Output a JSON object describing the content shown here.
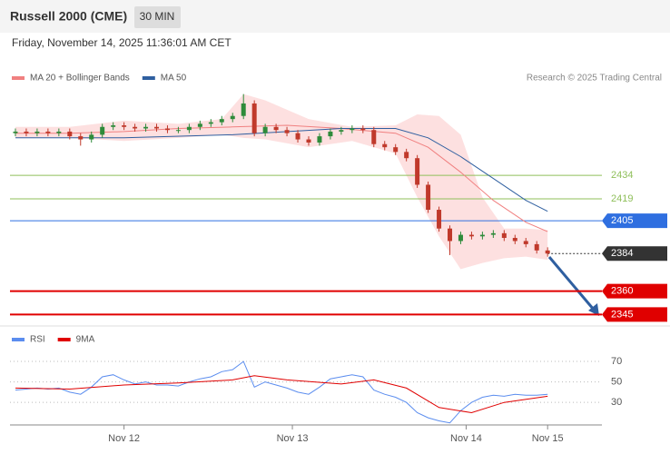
{
  "header": {
    "title": "Russell 2000 (CME)",
    "interval": "30 MIN",
    "timestamp": "Friday, November 14, 2025 11:36:01 AM CET",
    "credit": "Research © 2025 Trading Central"
  },
  "chart_data": [
    {
      "type": "candlestick",
      "xlim": [
        -0.5,
        54
      ],
      "ylim": [
        2340,
        2491
      ],
      "candles": {
        "up_color": "#2e8b3a",
        "down_color": "#c0392b",
        "open": [
          2461,
          2462,
          2461,
          2462,
          2461,
          2462,
          2459,
          2457,
          2460,
          2465,
          2466,
          2465,
          2464,
          2465,
          2464,
          2463,
          2463,
          2465,
          2467,
          2468,
          2470,
          2472,
          2480,
          2461,
          2465,
          2463,
          2461,
          2457,
          2455,
          2459,
          2462,
          2463,
          2464,
          2463,
          2454,
          2452,
          2449,
          2445,
          2428,
          2412,
          2400,
          2392,
          2396,
          2395,
          2396,
          2397,
          2394,
          2392,
          2390,
          2386
        ],
        "high": [
          2464,
          2464,
          2464,
          2464,
          2464,
          2464,
          2461,
          2462,
          2467,
          2468,
          2468,
          2467,
          2467,
          2467,
          2466,
          2465,
          2467,
          2469,
          2470,
          2472,
          2474,
          2486,
          2482,
          2467,
          2467,
          2465,
          2463,
          2459,
          2461,
          2464,
          2465,
          2466,
          2466,
          2465,
          2456,
          2454,
          2451,
          2447,
          2430,
          2414,
          2402,
          2398,
          2398,
          2398,
          2399,
          2399,
          2396,
          2394,
          2392,
          2388
        ],
        "low": [
          2459,
          2459,
          2459,
          2459,
          2459,
          2457,
          2453,
          2455,
          2458,
          2463,
          2463,
          2462,
          2462,
          2462,
          2461,
          2461,
          2461,
          2463,
          2465,
          2466,
          2468,
          2470,
          2459,
          2459,
          2461,
          2459,
          2455,
          2453,
          2453,
          2457,
          2460,
          2461,
          2461,
          2452,
          2450,
          2447,
          2443,
          2426,
          2410,
          2398,
          2383,
          2390,
          2393,
          2393,
          2394,
          2392,
          2390,
          2388,
          2384,
          2382
        ],
        "close": [
          2462,
          2461,
          2462,
          2461,
          2462,
          2459,
          2457,
          2460,
          2465,
          2466,
          2465,
          2464,
          2465,
          2464,
          2463,
          2463,
          2465,
          2467,
          2468,
          2470,
          2472,
          2480,
          2461,
          2465,
          2463,
          2461,
          2457,
          2455,
          2459,
          2462,
          2463,
          2464,
          2463,
          2454,
          2452,
          2449,
          2445,
          2428,
          2412,
          2400,
          2392,
          2396,
          2395,
          2396,
          2397,
          2394,
          2392,
          2390,
          2386,
          2384
        ]
      },
      "series": [
        {
          "name": "MA 20 + Bollinger Bands",
          "color": "#f08080",
          "band_color": "#fde0e0",
          "x": [
            0,
            5,
            10,
            15,
            20,
            25,
            30,
            35,
            38,
            41,
            44,
            47,
            49
          ],
          "values": [
            2461,
            2461,
            2462,
            2464,
            2465,
            2466,
            2464,
            2461,
            2452,
            2436,
            2418,
            2404,
            2398
          ],
          "band": {
            "x": [
              0,
              5,
              10,
              15,
              19,
              21,
              23,
              27,
              31,
              35,
              37,
              39,
              41,
              43,
              45,
              47,
              49
            ],
            "upper": [
              2465,
              2465,
              2469,
              2467,
              2470,
              2486,
              2482,
              2470,
              2465,
              2466,
              2473,
              2472,
              2460,
              2420,
              2400,
              2400,
              2399
            ],
            "lower": [
              2458,
              2458,
              2456,
              2458,
              2460,
              2458,
              2457,
              2452,
              2456,
              2448,
              2420,
              2395,
              2374,
              2378,
              2381,
              2382,
              2380
            ]
          }
        },
        {
          "name": "MA 50",
          "color": "#2f5fa0",
          "x": [
            0,
            10,
            20,
            30,
            35,
            38,
            41,
            44,
            47,
            49
          ],
          "values": [
            2458,
            2458,
            2460,
            2464,
            2464,
            2458,
            2446,
            2432,
            2418,
            2411
          ]
        }
      ],
      "levels": [
        {
          "value": 2434,
          "color": "#8fbf5a",
          "width": 1,
          "label_style": "text"
        },
        {
          "value": 2419,
          "color": "#8fbf5a",
          "width": 1,
          "label_style": "text"
        },
        {
          "value": 2405,
          "color": "#2f6fe0",
          "width": 1,
          "label_style": "tag"
        },
        {
          "value": 2384,
          "color": "#333333",
          "width": 1,
          "label_style": "tag",
          "line": "dotted"
        },
        {
          "value": 2360,
          "color": "#e00000",
          "width": 2,
          "label_style": "tag"
        },
        {
          "value": 2345,
          "color": "#e00000",
          "width": 2,
          "label_style": "tag"
        }
      ]
    },
    {
      "type": "line",
      "xlim": [
        -0.5,
        54
      ],
      "ylim": [
        8,
        86
      ],
      "yticks": [
        30,
        50,
        70
      ],
      "xticks": [
        {
          "value": 10,
          "label": "Nov 12"
        },
        {
          "value": 25.5,
          "label": "Nov 13"
        },
        {
          "value": 41.5,
          "label": "Nov 14"
        },
        {
          "value": 49,
          "label": "Nov 15"
        }
      ],
      "series": [
        {
          "name": "RSI",
          "color": "#5b8def",
          "values": [
            42,
            43,
            44,
            43,
            44,
            40,
            38,
            45,
            55,
            57,
            52,
            48,
            50,
            47,
            47,
            46,
            50,
            53,
            55,
            60,
            62,
            70,
            45,
            50,
            47,
            44,
            40,
            38,
            45,
            53,
            55,
            57,
            55,
            42,
            38,
            35,
            30,
            20,
            15,
            12,
            10,
            22,
            30,
            35,
            37,
            36,
            38,
            37,
            37,
            38
          ]
        },
        {
          "name": "9MA",
          "color": "#e00000",
          "x": [
            0,
            5,
            10,
            15,
            20,
            22,
            25,
            30,
            33,
            36,
            39,
            42,
            45,
            49
          ],
          "values": [
            44,
            43,
            47,
            49,
            52,
            56,
            52,
            48,
            52,
            44,
            25,
            20,
            30,
            36
          ]
        }
      ]
    }
  ]
}
